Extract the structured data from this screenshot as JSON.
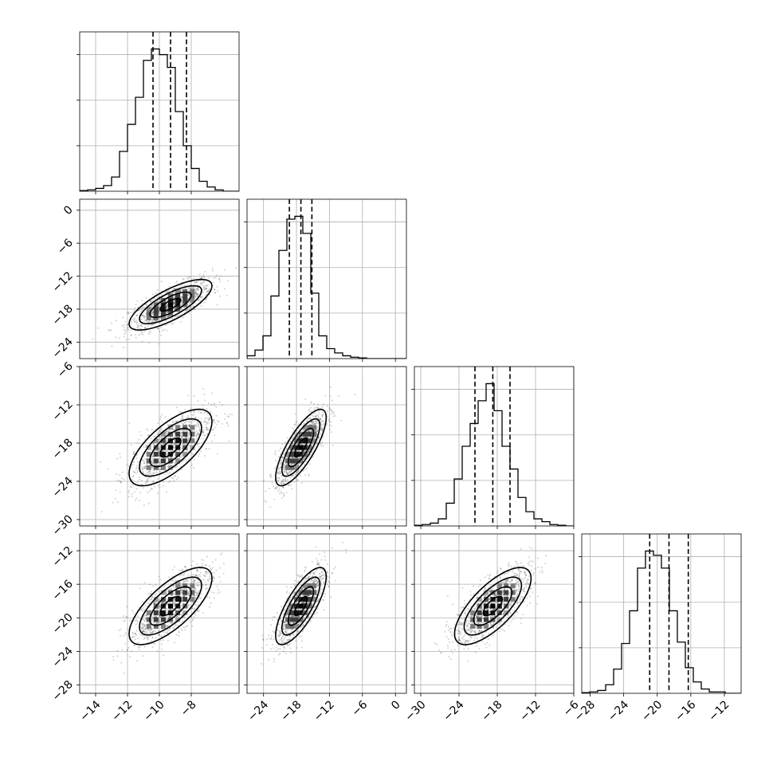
{
  "chart_data": {
    "type": "corner",
    "n_params": 4,
    "grid": true,
    "hist_bins": 20,
    "quantile_levels": [
      0.16,
      0.5,
      0.84
    ],
    "params": [
      {
        "mean": -9.3,
        "sd": 1.3,
        "range": [
          -15,
          -5
        ],
        "ticks": [
          "−14",
          "−12",
          "−10",
          "−8"
        ],
        "tick_values": [
          -14,
          -12,
          -10,
          -8
        ],
        "quantiles": [
          -10.4,
          -9.3,
          -8.3
        ]
      },
      {
        "mean": -17.2,
        "sd": 2.3,
        "range": [
          -27,
          2
        ],
        "ticks": [
          "−24",
          "−18",
          "−12",
          "−6",
          "0"
        ],
        "tick_values": [
          -24,
          -18,
          -12,
          -6,
          0
        ],
        "quantiles": [
          -19.3,
          -17.2,
          -15.2
        ]
      },
      {
        "mean": -18.7,
        "sd": 3.0,
        "range": [
          -31,
          -6
        ],
        "ticks": [
          "−30",
          "−24",
          "−18",
          "−12",
          "−6"
        ],
        "tick_values": [
          -30,
          -24,
          -18,
          -12,
          -6
        ],
        "quantiles": [
          -21.5,
          -18.7,
          -16.0
        ]
      },
      {
        "mean": -18.6,
        "sd": 2.3,
        "range": [
          -29,
          -10
        ],
        "ticks": [
          "−28",
          "−24",
          "−20",
          "−16",
          "−12"
        ],
        "tick_values": [
          -28,
          -24,
          -20,
          -16,
          -12
        ],
        "quantiles": [
          -20.9,
          -18.6,
          -16.3
        ]
      }
    ],
    "correlations": [
      [
        1.0,
        0.75,
        0.68,
        0.72
      ],
      [
        0.75,
        1.0,
        0.78,
        0.76
      ],
      [
        0.68,
        0.78,
        1.0,
        0.72
      ],
      [
        0.72,
        0.76,
        0.72,
        1.0
      ]
    ],
    "histograms": [
      [
        0.005,
        0.01,
        0.02,
        0.04,
        0.1,
        0.28,
        0.47,
        0.66,
        0.92,
        1.0,
        0.96,
        0.87,
        0.56,
        0.32,
        0.16,
        0.07,
        0.03,
        0.01,
        0,
        0
      ],
      [
        0.02,
        0.06,
        0.16,
        0.44,
        0.76,
        0.98,
        1.0,
        0.88,
        0.46,
        0.16,
        0.07,
        0.04,
        0.02,
        0.01,
        0.005,
        0,
        0,
        0,
        0,
        0
      ],
      [
        0.005,
        0.01,
        0.02,
        0.05,
        0.16,
        0.33,
        0.56,
        0.72,
        0.88,
        1.0,
        0.81,
        0.56,
        0.4,
        0.2,
        0.1,
        0.05,
        0.03,
        0.01,
        0.005,
        0
      ],
      [
        0.005,
        0.01,
        0.02,
        0.06,
        0.17,
        0.35,
        0.58,
        0.88,
        1.0,
        0.97,
        0.88,
        0.58,
        0.36,
        0.18,
        0.08,
        0.03,
        0.01,
        0.01,
        0,
        0
      ]
    ]
  }
}
